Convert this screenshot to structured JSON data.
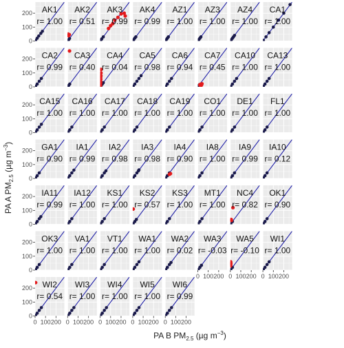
{
  "chart_data": {
    "type": "scatter",
    "layout": "faceted small multiples",
    "xlabel": "PA B PM2.5 (µg m⁻³)",
    "ylabel": "PA A PM2.5 (µg m⁻³)",
    "xlim": [
      0,
      280
    ],
    "ylim": [
      0,
      280
    ],
    "x_ticks": [
      0,
      100,
      200
    ],
    "y_ticks": [
      0,
      100,
      200
    ],
    "grid": true,
    "reference_line": "1:1",
    "colors": {
      "panel_background": "#ebebeb",
      "grid": "#ffffff",
      "points_normal": "#1a1a4a",
      "points_outlier": "#e31a1c",
      "one_to_one": "#1f1fa8"
    },
    "facets": [
      {
        "site": "AK1",
        "r": "r= 1.00",
        "normal": [
          [
            5,
            5
          ],
          [
            20,
            20
          ],
          [
            35,
            36
          ],
          [
            55,
            55
          ],
          [
            70,
            70
          ]
        ],
        "outliers": []
      },
      {
        "site": "AK2",
        "r": "r= 0.51",
        "normal": [
          [
            3,
            3
          ],
          [
            10,
            10
          ],
          [
            18,
            18
          ]
        ],
        "outliers": [
          [
            2,
            40
          ],
          [
            5,
            44
          ],
          [
            8,
            38
          ],
          [
            12,
            42
          ],
          [
            16,
            46
          ],
          [
            4,
            50
          ]
        ]
      },
      {
        "site": "AK3",
        "r": "r= 0.99",
        "normal": [
          [
            5,
            5
          ],
          [
            15,
            15
          ],
          [
            30,
            30
          ]
        ],
        "outliers": [
          [
            80,
            90
          ],
          [
            100,
            110
          ],
          [
            120,
            125
          ],
          [
            140,
            150
          ],
          [
            170,
            170
          ],
          [
            200,
            195
          ],
          [
            230,
            200
          ],
          [
            240,
            180
          ]
        ]
      },
      {
        "site": "AK4",
        "r": "r= 0.99",
        "normal": [
          [
            3,
            3
          ],
          [
            10,
            10
          ],
          [
            20,
            21
          ],
          [
            30,
            30
          ]
        ],
        "outliers": []
      },
      {
        "site": "AZ1",
        "r": "r= 1.00",
        "normal": [
          [
            3,
            3
          ],
          [
            10,
            10
          ],
          [
            20,
            20
          ],
          [
            30,
            30
          ]
        ],
        "outliers": []
      },
      {
        "site": "AZ3",
        "r": "r= 1.00",
        "normal": [
          [
            3,
            3
          ],
          [
            10,
            10
          ],
          [
            20,
            20
          ],
          [
            30,
            30
          ]
        ],
        "outliers": []
      },
      {
        "site": "AZ4",
        "r": "r= 1.00",
        "normal": [
          [
            3,
            3
          ],
          [
            10,
            10
          ],
          [
            20,
            20
          ],
          [
            30,
            30
          ],
          [
            40,
            40
          ]
        ],
        "outliers": []
      },
      {
        "site": "CA1",
        "r": "r= 1.00",
        "normal": [
          [
            5,
            5
          ],
          [
            30,
            30
          ],
          [
            60,
            60
          ],
          [
            100,
            100
          ],
          [
            150,
            150
          ],
          [
            200,
            200
          ],
          [
            260,
            262
          ]
        ],
        "outliers": []
      },
      {
        "site": "CA2",
        "r": "r= 0.99",
        "normal": [
          [
            5,
            5
          ],
          [
            20,
            20
          ],
          [
            40,
            40
          ],
          [
            60,
            60
          ]
        ],
        "outliers": []
      },
      {
        "site": "CA3",
        "r": "r= 0.40",
        "normal": [
          [
            3,
            3
          ],
          [
            10,
            10
          ],
          [
            20,
            20
          ]
        ],
        "outliers": [
          [
            18,
            258
          ]
        ]
      },
      {
        "site": "CA4",
        "r": "r= 0.04",
        "normal": [
          [
            3,
            3
          ],
          [
            10,
            10
          ],
          [
            20,
            20
          ],
          [
            30,
            30
          ]
        ],
        "outliers": [
          [
            3,
            10
          ],
          [
            5,
            30
          ],
          [
            6,
            55
          ],
          [
            7,
            80
          ],
          [
            8,
            100
          ],
          [
            9,
            125
          ],
          [
            4,
            40
          ],
          [
            5,
            70
          ],
          [
            3,
            20
          ]
        ]
      },
      {
        "site": "CA5",
        "r": "r= 0.98",
        "normal": [
          [
            5,
            5
          ],
          [
            20,
            20
          ],
          [
            40,
            40
          ],
          [
            60,
            60
          ],
          [
            80,
            80
          ]
        ],
        "outliers": []
      },
      {
        "site": "CA6",
        "r": "r= 0.94",
        "normal": [
          [
            5,
            5
          ],
          [
            20,
            20
          ],
          [
            40,
            40
          ],
          [
            60,
            60
          ]
        ],
        "outliers": []
      },
      {
        "site": "CA7",
        "r": "r= 0.45",
        "normal": [
          [
            5,
            5
          ],
          [
            15,
            15
          ]
        ],
        "outliers": [
          [
            20,
            15
          ],
          [
            30,
            20
          ],
          [
            40,
            22
          ],
          [
            25,
            10
          ],
          [
            35,
            12
          ]
        ]
      },
      {
        "site": "CA10",
        "r": "r= 1.00",
        "normal": [
          [
            5,
            5
          ],
          [
            20,
            20
          ],
          [
            40,
            40
          ],
          [
            60,
            60
          ]
        ],
        "outliers": []
      },
      {
        "site": "CA13",
        "r": "r= 1.00",
        "normal": [
          [
            5,
            5
          ],
          [
            20,
            20
          ],
          [
            40,
            40
          ],
          [
            60,
            60
          ]
        ],
        "outliers": []
      },
      {
        "site": "CA15",
        "r": "r= 1.00",
        "normal": [
          [
            5,
            5
          ],
          [
            20,
            20
          ],
          [
            40,
            40
          ],
          [
            60,
            60
          ]
        ],
        "outliers": []
      },
      {
        "site": "CA16",
        "r": "r= 1.00",
        "normal": [
          [
            5,
            5
          ],
          [
            20,
            20
          ],
          [
            40,
            40
          ]
        ],
        "outliers": []
      },
      {
        "site": "CA17",
        "r": "r= 1.00",
        "normal": [
          [
            5,
            5
          ],
          [
            20,
            20
          ],
          [
            40,
            40
          ]
        ],
        "outliers": []
      },
      {
        "site": "CA18",
        "r": "r= 1.00",
        "normal": [
          [
            5,
            5
          ],
          [
            20,
            20
          ],
          [
            40,
            40
          ]
        ],
        "outliers": []
      },
      {
        "site": "CA19",
        "r": "r= 1.00",
        "normal": [
          [
            5,
            5
          ],
          [
            20,
            20
          ],
          [
            40,
            40
          ]
        ],
        "outliers": []
      },
      {
        "site": "CO1",
        "r": "r= 1.00",
        "normal": [
          [
            5,
            5
          ],
          [
            20,
            20
          ],
          [
            40,
            40
          ]
        ],
        "outliers": []
      },
      {
        "site": "DE1",
        "r": "r= 1.00",
        "normal": [
          [
            5,
            5
          ],
          [
            20,
            20
          ],
          [
            40,
            40
          ]
        ],
        "outliers": []
      },
      {
        "site": "FL1",
        "r": "r= 1.00",
        "normal": [
          [
            5,
            5
          ],
          [
            20,
            20
          ],
          [
            40,
            40
          ]
        ],
        "outliers": []
      },
      {
        "site": "GA1",
        "r": "r= 0.90",
        "normal": [
          [
            5,
            5
          ],
          [
            20,
            20
          ],
          [
            40,
            40
          ]
        ],
        "outliers": []
      },
      {
        "site": "IA1",
        "r": "r= 0.99",
        "normal": [
          [
            5,
            5
          ],
          [
            20,
            20
          ],
          [
            40,
            40
          ],
          [
            60,
            60
          ]
        ],
        "outliers": []
      },
      {
        "site": "IA2",
        "r": "r= 0.98",
        "normal": [
          [
            5,
            5
          ],
          [
            20,
            20
          ],
          [
            40,
            40
          ],
          [
            55,
            55
          ]
        ],
        "outliers": []
      },
      {
        "site": "IA3",
        "r": "r= 0.98",
        "normal": [
          [
            5,
            5
          ],
          [
            20,
            20
          ],
          [
            40,
            40
          ],
          [
            55,
            55
          ],
          [
            60,
            62
          ]
        ],
        "outliers": []
      },
      {
        "site": "IA4",
        "r": "r= 0.90",
        "normal": [
          [
            5,
            5
          ],
          [
            20,
            20
          ],
          [
            40,
            40
          ]
        ],
        "outliers": [
          [
            40,
            30
          ],
          [
            50,
            35
          ]
        ]
      },
      {
        "site": "IA8",
        "r": "r= 1.00",
        "normal": [
          [
            5,
            5
          ],
          [
            20,
            20
          ],
          [
            40,
            40
          ]
        ],
        "outliers": []
      },
      {
        "site": "IA9",
        "r": "r= 0.99",
        "normal": [
          [
            5,
            5
          ],
          [
            20,
            20
          ],
          [
            40,
            40
          ]
        ],
        "outliers": []
      },
      {
        "site": "IA10",
        "r": "r= 0.12",
        "normal": [
          [
            5,
            5
          ],
          [
            20,
            20
          ],
          [
            40,
            40
          ]
        ],
        "outliers": []
      },
      {
        "site": "IA11",
        "r": "r= 0.99",
        "normal": [
          [
            5,
            5
          ],
          [
            20,
            20
          ],
          [
            40,
            40
          ],
          [
            55,
            55
          ]
        ],
        "outliers": []
      },
      {
        "site": "IA12",
        "r": "r= 1.00",
        "normal": [
          [
            5,
            5
          ],
          [
            20,
            20
          ],
          [
            40,
            40
          ]
        ],
        "outliers": []
      },
      {
        "site": "KS1",
        "r": "r= 1.00",
        "normal": [
          [
            5,
            5
          ],
          [
            20,
            20
          ],
          [
            40,
            40
          ]
        ],
        "outliers": []
      },
      {
        "site": "KS2",
        "r": "r= 0.57",
        "normal": [
          [
            5,
            5
          ],
          [
            20,
            20
          ],
          [
            35,
            35
          ]
        ],
        "outliers": [
          [
            5,
            110
          ]
        ]
      },
      {
        "site": "KS3",
        "r": "r= 1.00",
        "normal": [
          [
            5,
            5
          ],
          [
            20,
            20
          ],
          [
            40,
            40
          ]
        ],
        "outliers": []
      },
      {
        "site": "MT1",
        "r": "r= 1.00",
        "normal": [
          [
            5,
            5
          ],
          [
            20,
            20
          ],
          [
            40,
            40
          ]
        ],
        "outliers": []
      },
      {
        "site": "NC4",
        "r": "r= 0.82",
        "normal": [
          [
            5,
            5
          ],
          [
            20,
            20
          ]
        ],
        "outliers": [
          [
            25,
            120
          ],
          [
            5,
            30
          ],
          [
            8,
            35
          ],
          [
            10,
            28
          ]
        ]
      },
      {
        "site": "OK1",
        "r": "r= 0.90",
        "normal": [
          [
            5,
            5
          ],
          [
            20,
            20
          ],
          [
            40,
            40
          ]
        ],
        "outliers": []
      },
      {
        "site": "OK3",
        "r": "r= 1.00",
        "normal": [
          [
            5,
            5
          ],
          [
            20,
            20
          ],
          [
            40,
            40
          ]
        ],
        "outliers": []
      },
      {
        "site": "VA1",
        "r": "r= 1.00",
        "normal": [
          [
            5,
            5
          ],
          [
            20,
            20
          ],
          [
            40,
            40
          ]
        ],
        "outliers": []
      },
      {
        "site": "VT1",
        "r": "r= 1.00",
        "normal": [
          [
            5,
            5
          ],
          [
            20,
            20
          ],
          [
            40,
            40
          ]
        ],
        "outliers": []
      },
      {
        "site": "WA1",
        "r": "r= 1.00",
        "normal": [
          [
            5,
            5
          ],
          [
            20,
            20
          ],
          [
            40,
            40
          ],
          [
            60,
            60
          ]
        ],
        "outliers": []
      },
      {
        "site": "WA2",
        "r": "r= 0.02",
        "normal": [
          [
            5,
            5
          ],
          [
            20,
            20
          ],
          [
            40,
            40
          ],
          [
            55,
            55
          ]
        ],
        "outliers": []
      },
      {
        "site": "WA3",
        "r": "r= -0.03",
        "normal": [
          [
            5,
            5
          ],
          [
            20,
            20
          ],
          [
            35,
            35
          ]
        ],
        "outliers": []
      },
      {
        "site": "WA5",
        "r": "r= -0.10",
        "normal": [
          [
            5,
            5
          ],
          [
            20,
            20
          ]
        ],
        "outliers": [
          [
            3,
            30
          ],
          [
            4,
            40
          ],
          [
            5,
            50
          ],
          [
            3,
            60
          ]
        ]
      },
      {
        "site": "WI1",
        "r": "r= 1.00",
        "normal": [
          [
            5,
            5
          ],
          [
            20,
            20
          ],
          [
            40,
            40
          ],
          [
            60,
            60
          ]
        ],
        "outliers": []
      },
      {
        "site": "WI2",
        "r": "r= 0.54",
        "normal": [
          [
            5,
            5
          ],
          [
            20,
            20
          ],
          [
            40,
            40
          ],
          [
            60,
            60
          ]
        ],
        "outliers": [
          [
            5,
            240
          ]
        ]
      },
      {
        "site": "WI3",
        "r": "r= 1.00",
        "normal": [
          [
            5,
            5
          ],
          [
            20,
            20
          ],
          [
            40,
            40
          ],
          [
            60,
            60
          ]
        ],
        "outliers": []
      },
      {
        "site": "WI4",
        "r": "r= 1.00",
        "normal": [
          [
            5,
            5
          ],
          [
            20,
            20
          ],
          [
            40,
            40
          ],
          [
            60,
            60
          ]
        ],
        "outliers": []
      },
      {
        "site": "WI5",
        "r": "r= 1.00",
        "normal": [
          [
            5,
            5
          ],
          [
            20,
            20
          ],
          [
            40,
            40
          ],
          [
            60,
            60
          ]
        ],
        "outliers": []
      },
      {
        "site": "WI6",
        "r": "r= 0.99",
        "normal": [
          [
            5,
            5
          ],
          [
            20,
            20
          ],
          [
            40,
            40
          ],
          [
            60,
            60
          ]
        ],
        "outliers": []
      }
    ]
  }
}
